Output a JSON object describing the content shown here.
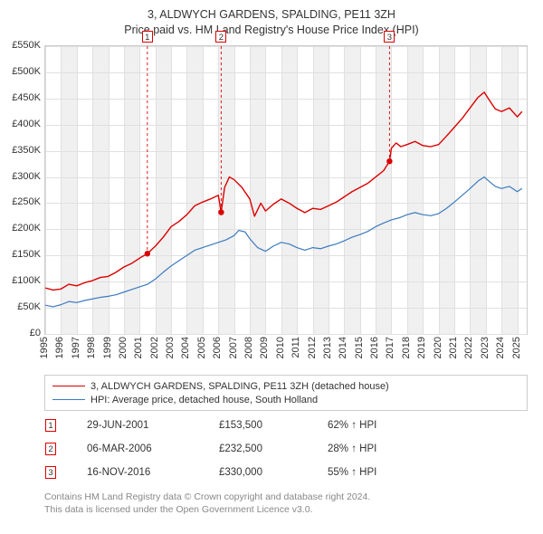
{
  "title_line1": "3, ALDWYCH GARDENS, SPALDING, PE11 3ZH",
  "title_line2": "Price paid vs. HM Land Registry's House Price Index (HPI)",
  "chart": {
    "type": "line",
    "background_color": "#ffffff",
    "alt_band_color": "#f0f0f0",
    "grid_color": "#e0e0e0",
    "border_color": "#cccccc",
    "y": {
      "min": 0,
      "max": 550000,
      "step": 50000,
      "ticks": [
        "£0",
        "£50K",
        "£100K",
        "£150K",
        "£200K",
        "£250K",
        "£300K",
        "£350K",
        "£400K",
        "£450K",
        "£500K",
        "£550K"
      ],
      "tick_fontsize": 11
    },
    "x": {
      "min": 1995,
      "max": 2025.6,
      "years": [
        1995,
        1996,
        1997,
        1998,
        1999,
        2000,
        2001,
        2002,
        2003,
        2004,
        2005,
        2006,
        2007,
        2008,
        2009,
        2010,
        2011,
        2012,
        2013,
        2014,
        2015,
        2016,
        2017,
        2018,
        2019,
        2020,
        2021,
        2022,
        2023,
        2024,
        2025
      ],
      "tick_fontsize": 11
    },
    "series": [
      {
        "name": "3, ALDWYCH GARDENS, SPALDING, PE11 3ZH (detached house)",
        "color": "#dc0000",
        "line_width": 1.4,
        "data": [
          [
            1995.0,
            88000
          ],
          [
            1995.5,
            84000
          ],
          [
            1996.0,
            86000
          ],
          [
            1996.5,
            95000
          ],
          [
            1997.0,
            92000
          ],
          [
            1997.5,
            98000
          ],
          [
            1998.0,
            102000
          ],
          [
            1998.5,
            108000
          ],
          [
            1999.0,
            110000
          ],
          [
            1999.5,
            118000
          ],
          [
            2000.0,
            128000
          ],
          [
            2000.5,
            135000
          ],
          [
            2001.0,
            145000
          ],
          [
            2001.49,
            153500
          ],
          [
            2002.0,
            168000
          ],
          [
            2002.5,
            185000
          ],
          [
            2003.0,
            205000
          ],
          [
            2003.5,
            215000
          ],
          [
            2004.0,
            228000
          ],
          [
            2004.5,
            245000
          ],
          [
            2005.0,
            252000
          ],
          [
            2005.5,
            258000
          ],
          [
            2006.0,
            265000
          ],
          [
            2006.18,
            232500
          ],
          [
            2006.4,
            280000
          ],
          [
            2006.7,
            300000
          ],
          [
            2007.0,
            295000
          ],
          [
            2007.5,
            280000
          ],
          [
            2008.0,
            258000
          ],
          [
            2008.3,
            225000
          ],
          [
            2008.7,
            250000
          ],
          [
            2009.0,
            235000
          ],
          [
            2009.5,
            248000
          ],
          [
            2010.0,
            258000
          ],
          [
            2010.5,
            250000
          ],
          [
            2011.0,
            240000
          ],
          [
            2011.5,
            232000
          ],
          [
            2012.0,
            240000
          ],
          [
            2012.5,
            238000
          ],
          [
            2013.0,
            245000
          ],
          [
            2013.5,
            252000
          ],
          [
            2014.0,
            262000
          ],
          [
            2014.5,
            272000
          ],
          [
            2015.0,
            280000
          ],
          [
            2015.5,
            288000
          ],
          [
            2016.0,
            300000
          ],
          [
            2016.5,
            312000
          ],
          [
            2016.88,
            330000
          ],
          [
            2017.0,
            355000
          ],
          [
            2017.3,
            365000
          ],
          [
            2017.6,
            358000
          ],
          [
            2018.0,
            362000
          ],
          [
            2018.5,
            368000
          ],
          [
            2019.0,
            360000
          ],
          [
            2019.5,
            358000
          ],
          [
            2020.0,
            362000
          ],
          [
            2020.5,
            378000
          ],
          [
            2021.0,
            395000
          ],
          [
            2021.5,
            412000
          ],
          [
            2022.0,
            432000
          ],
          [
            2022.5,
            452000
          ],
          [
            2022.9,
            462000
          ],
          [
            2023.2,
            448000
          ],
          [
            2023.6,
            430000
          ],
          [
            2024.0,
            425000
          ],
          [
            2024.5,
            432000
          ],
          [
            2025.0,
            415000
          ],
          [
            2025.3,
            425000
          ]
        ]
      },
      {
        "name": "HPI: Average price, detached house, South Holland",
        "color": "#3b7bbf",
        "line_width": 1.2,
        "data": [
          [
            1995.0,
            55000
          ],
          [
            1995.5,
            52000
          ],
          [
            1996.0,
            56000
          ],
          [
            1996.5,
            62000
          ],
          [
            1997.0,
            60000
          ],
          [
            1997.5,
            64000
          ],
          [
            1998.0,
            67000
          ],
          [
            1998.5,
            70000
          ],
          [
            1999.0,
            72000
          ],
          [
            1999.5,
            75000
          ],
          [
            2000.0,
            80000
          ],
          [
            2000.5,
            85000
          ],
          [
            2001.0,
            90000
          ],
          [
            2001.5,
            95000
          ],
          [
            2002.0,
            105000
          ],
          [
            2002.5,
            118000
          ],
          [
            2003.0,
            130000
          ],
          [
            2003.5,
            140000
          ],
          [
            2004.0,
            150000
          ],
          [
            2004.5,
            160000
          ],
          [
            2005.0,
            165000
          ],
          [
            2005.5,
            170000
          ],
          [
            2006.0,
            175000
          ],
          [
            2006.5,
            180000
          ],
          [
            2007.0,
            188000
          ],
          [
            2007.3,
            198000
          ],
          [
            2007.7,
            195000
          ],
          [
            2008.0,
            182000
          ],
          [
            2008.5,
            165000
          ],
          [
            2009.0,
            158000
          ],
          [
            2009.5,
            168000
          ],
          [
            2010.0,
            175000
          ],
          [
            2010.5,
            172000
          ],
          [
            2011.0,
            165000
          ],
          [
            2011.5,
            160000
          ],
          [
            2012.0,
            165000
          ],
          [
            2012.5,
            163000
          ],
          [
            2013.0,
            168000
          ],
          [
            2013.5,
            172000
          ],
          [
            2014.0,
            178000
          ],
          [
            2014.5,
            185000
          ],
          [
            2015.0,
            190000
          ],
          [
            2015.5,
            196000
          ],
          [
            2016.0,
            205000
          ],
          [
            2016.5,
            212000
          ],
          [
            2017.0,
            218000
          ],
          [
            2017.5,
            222000
          ],
          [
            2018.0,
            228000
          ],
          [
            2018.5,
            232000
          ],
          [
            2019.0,
            228000
          ],
          [
            2019.5,
            226000
          ],
          [
            2020.0,
            230000
          ],
          [
            2020.5,
            240000
          ],
          [
            2021.0,
            252000
          ],
          [
            2021.5,
            265000
          ],
          [
            2022.0,
            278000
          ],
          [
            2022.5,
            292000
          ],
          [
            2022.9,
            300000
          ],
          [
            2023.2,
            292000
          ],
          [
            2023.6,
            282000
          ],
          [
            2024.0,
            278000
          ],
          [
            2024.5,
            282000
          ],
          [
            2025.0,
            272000
          ],
          [
            2025.3,
            278000
          ]
        ]
      }
    ],
    "sale_markers": [
      {
        "n": "1",
        "x": 2001.49,
        "y": 153500
      },
      {
        "n": "2",
        "x": 2006.18,
        "y": 232500
      },
      {
        "n": "3",
        "x": 2016.88,
        "y": 330000
      }
    ],
    "sale_marker_dot_color": "#dc0000",
    "sale_marker_dot_radius": 3.2
  },
  "legend": {
    "items": [
      {
        "color": "#dc0000",
        "label": "3, ALDWYCH GARDENS, SPALDING, PE11 3ZH (detached house)"
      },
      {
        "color": "#3b7bbf",
        "label": "HPI: Average price, detached house, South Holland"
      }
    ]
  },
  "trades": [
    {
      "n": "1",
      "date": "29-JUN-2001",
      "price": "£153,500",
      "delta": "62% ↑ HPI"
    },
    {
      "n": "2",
      "date": "06-MAR-2006",
      "price": "£232,500",
      "delta": "28% ↑ HPI"
    },
    {
      "n": "3",
      "date": "16-NOV-2016",
      "price": "£330,000",
      "delta": "55% ↑ HPI"
    }
  ],
  "attribution_line1": "Contains HM Land Registry data © Crown copyright and database right 2024.",
  "attribution_line2": "This data is licensed under the Open Government Licence v3.0."
}
